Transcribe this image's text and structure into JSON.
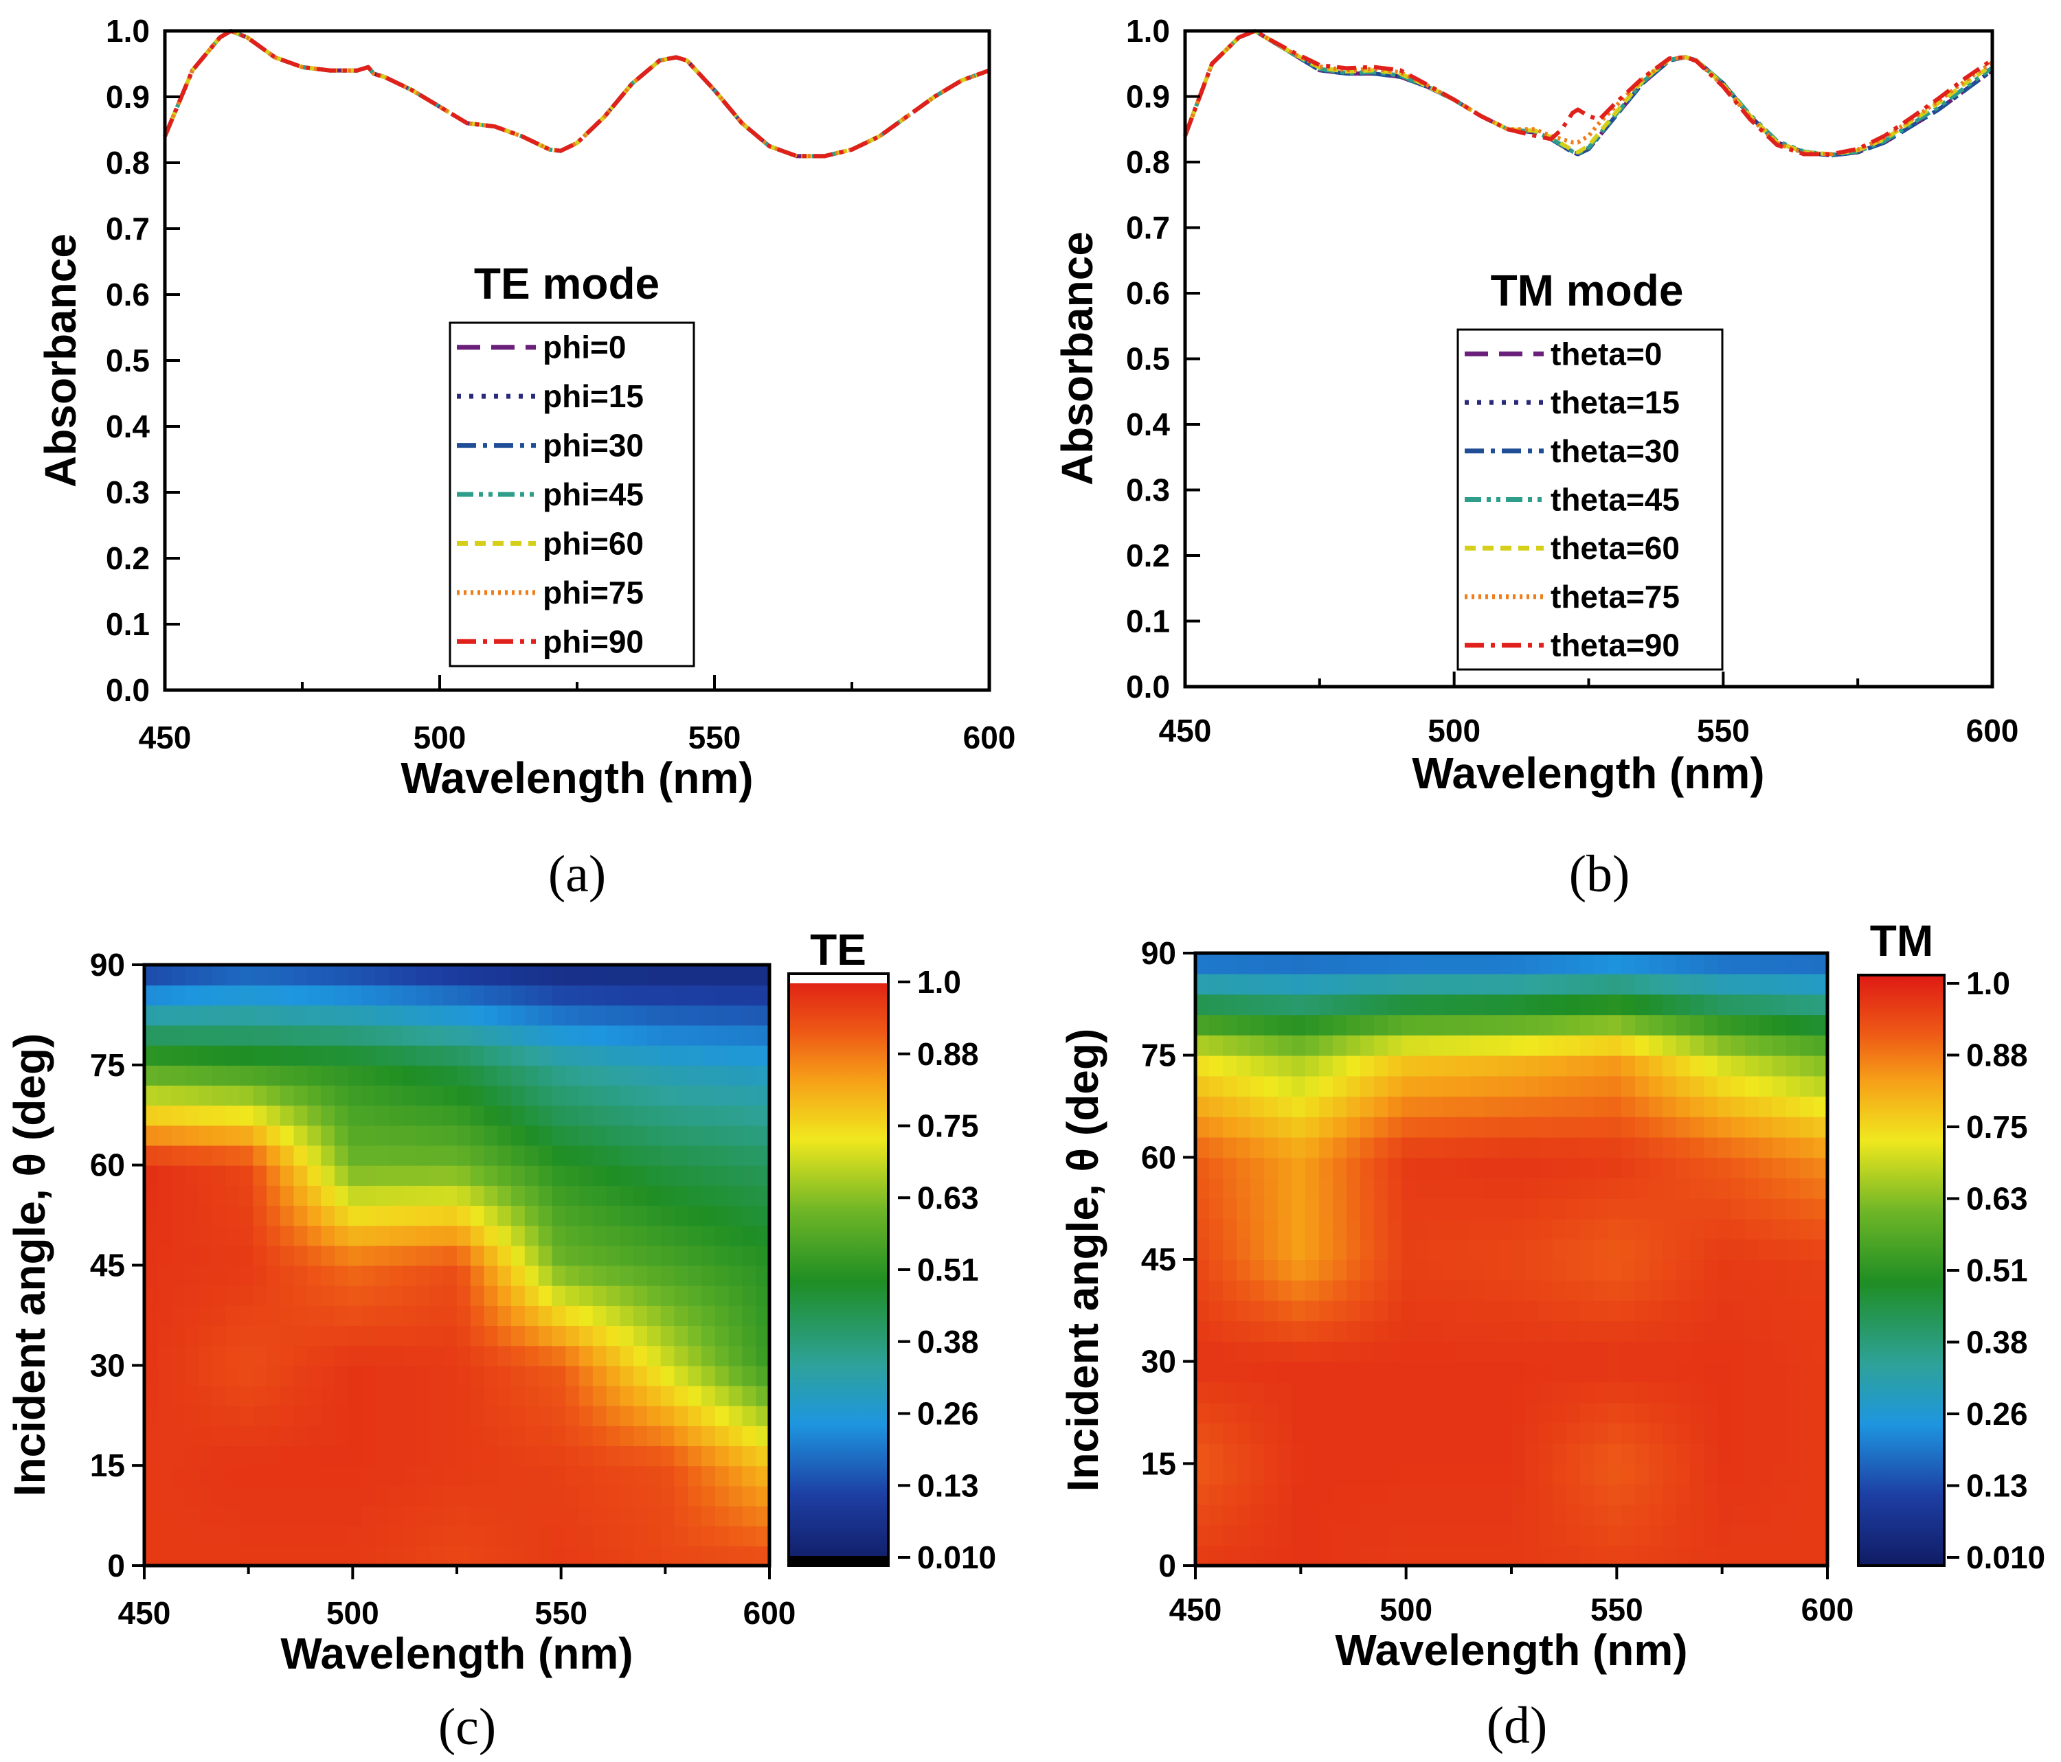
{
  "chart_data": [
    {
      "id": "a",
      "type": "line",
      "panel_label": "(a)",
      "title": "TE mode",
      "xlabel": "Wavelength (nm)",
      "ylabel": "Absorbance",
      "xlim": [
        450,
        600
      ],
      "ylim": [
        0.0,
        1.0
      ],
      "xticks": [
        "450",
        "500",
        "550",
        "600"
      ],
      "yticks": [
        "0.0",
        "0.1",
        "0.2",
        "0.3",
        "0.4",
        "0.5",
        "0.6",
        "0.7",
        "0.8",
        "0.9",
        "1.0"
      ],
      "legend_position": "center",
      "x": [
        450,
        455,
        460,
        462,
        465,
        470,
        475,
        480,
        485,
        487,
        488,
        490,
        495,
        500,
        505,
        510,
        515,
        520,
        522,
        525,
        530,
        535,
        540,
        543,
        545,
        550,
        555,
        560,
        565,
        570,
        575,
        580,
        585,
        590,
        595,
        600
      ],
      "series": [
        {
          "name": "phi=0",
          "color": "#6a1f7a",
          "dash": "dash",
          "values": [
            0.84,
            0.94,
            0.99,
            1.0,
            0.99,
            0.96,
            0.945,
            0.94,
            0.94,
            0.945,
            0.935,
            0.93,
            0.91,
            0.885,
            0.86,
            0.855,
            0.84,
            0.82,
            0.818,
            0.83,
            0.87,
            0.92,
            0.955,
            0.96,
            0.955,
            0.91,
            0.86,
            0.825,
            0.81,
            0.81,
            0.82,
            0.84,
            0.87,
            0.9,
            0.925,
            0.94
          ]
        },
        {
          "name": "phi=15",
          "color": "#2a2a7a",
          "dash": "dot",
          "values": [
            0.84,
            0.94,
            0.99,
            1.0,
            0.99,
            0.96,
            0.945,
            0.94,
            0.94,
            0.945,
            0.935,
            0.93,
            0.91,
            0.885,
            0.86,
            0.855,
            0.84,
            0.82,
            0.818,
            0.83,
            0.87,
            0.92,
            0.955,
            0.96,
            0.955,
            0.91,
            0.86,
            0.825,
            0.81,
            0.81,
            0.82,
            0.84,
            0.87,
            0.9,
            0.925,
            0.94
          ]
        },
        {
          "name": "phi=30",
          "color": "#1f4e96",
          "dash": "dashdot",
          "values": [
            0.84,
            0.94,
            0.99,
            1.0,
            0.99,
            0.96,
            0.945,
            0.94,
            0.94,
            0.945,
            0.935,
            0.93,
            0.91,
            0.885,
            0.86,
            0.855,
            0.84,
            0.82,
            0.818,
            0.83,
            0.87,
            0.92,
            0.955,
            0.96,
            0.955,
            0.91,
            0.86,
            0.825,
            0.81,
            0.81,
            0.82,
            0.84,
            0.87,
            0.9,
            0.925,
            0.94
          ]
        },
        {
          "name": "phi=45",
          "color": "#2e9e8a",
          "dash": "dashdotdot",
          "values": [
            0.84,
            0.94,
            0.99,
            1.0,
            0.99,
            0.96,
            0.945,
            0.94,
            0.94,
            0.945,
            0.935,
            0.93,
            0.91,
            0.885,
            0.86,
            0.855,
            0.84,
            0.82,
            0.818,
            0.83,
            0.87,
            0.92,
            0.955,
            0.96,
            0.955,
            0.91,
            0.86,
            0.825,
            0.81,
            0.81,
            0.82,
            0.84,
            0.87,
            0.9,
            0.925,
            0.94
          ]
        },
        {
          "name": "phi=60",
          "color": "#d6cf1a",
          "dash": "shortdash",
          "values": [
            0.84,
            0.94,
            0.99,
            1.0,
            0.99,
            0.96,
            0.945,
            0.94,
            0.94,
            0.945,
            0.935,
            0.93,
            0.91,
            0.885,
            0.86,
            0.855,
            0.84,
            0.82,
            0.818,
            0.83,
            0.87,
            0.92,
            0.955,
            0.96,
            0.955,
            0.91,
            0.86,
            0.825,
            0.81,
            0.81,
            0.82,
            0.84,
            0.87,
            0.9,
            0.925,
            0.94
          ]
        },
        {
          "name": "phi=75",
          "color": "#ef7d1a",
          "dash": "finedot",
          "values": [
            0.84,
            0.94,
            0.99,
            1.0,
            0.99,
            0.96,
            0.945,
            0.94,
            0.94,
            0.945,
            0.935,
            0.93,
            0.91,
            0.885,
            0.86,
            0.855,
            0.84,
            0.82,
            0.818,
            0.83,
            0.87,
            0.92,
            0.955,
            0.96,
            0.955,
            0.91,
            0.86,
            0.825,
            0.81,
            0.81,
            0.82,
            0.84,
            0.87,
            0.9,
            0.925,
            0.94
          ]
        },
        {
          "name": "phi=90",
          "color": "#e0201b",
          "dash": "dashdot",
          "values": [
            0.84,
            0.94,
            0.99,
            1.0,
            0.99,
            0.96,
            0.945,
            0.94,
            0.94,
            0.945,
            0.935,
            0.93,
            0.91,
            0.885,
            0.86,
            0.855,
            0.84,
            0.82,
            0.818,
            0.83,
            0.87,
            0.92,
            0.955,
            0.96,
            0.955,
            0.91,
            0.86,
            0.825,
            0.81,
            0.81,
            0.82,
            0.84,
            0.87,
            0.9,
            0.925,
            0.94
          ]
        }
      ]
    },
    {
      "id": "b",
      "type": "line",
      "panel_label": "(b)",
      "title": "TM mode",
      "xlabel": "Wavelength (nm)",
      "ylabel": "Absorbance",
      "xlim": [
        450,
        600
      ],
      "ylim": [
        0.0,
        1.0
      ],
      "xticks": [
        "450",
        "500",
        "550",
        "600"
      ],
      "yticks": [
        "0.0",
        "0.1",
        "0.2",
        "0.3",
        "0.4",
        "0.5",
        "0.6",
        "0.7",
        "0.8",
        "0.9",
        "1.0"
      ],
      "legend_position": "center",
      "x": [
        450,
        455,
        460,
        463,
        465,
        470,
        475,
        480,
        485,
        490,
        495,
        500,
        505,
        510,
        515,
        518,
        520,
        522,
        523,
        525,
        527,
        530,
        535,
        540,
        543,
        545,
        550,
        555,
        560,
        565,
        570,
        575,
        580,
        585,
        590,
        595,
        600
      ],
      "series": [
        {
          "name": "theta=0",
          "color": "#6a1f7a",
          "dash": "dash",
          "values": [
            0.84,
            0.95,
            0.99,
            1.0,
            0.99,
            0.965,
            0.94,
            0.935,
            0.935,
            0.93,
            0.915,
            0.895,
            0.87,
            0.85,
            0.845,
            0.835,
            0.825,
            0.815,
            0.812,
            0.82,
            0.84,
            0.87,
            0.92,
            0.955,
            0.96,
            0.955,
            0.92,
            0.87,
            0.83,
            0.815,
            0.81,
            0.815,
            0.83,
            0.855,
            0.88,
            0.91,
            0.94
          ]
        },
        {
          "name": "theta=15",
          "color": "#2a2a7a",
          "dash": "dot",
          "values": [
            0.84,
            0.95,
            0.99,
            1.0,
            0.99,
            0.965,
            0.94,
            0.935,
            0.935,
            0.93,
            0.915,
            0.895,
            0.87,
            0.85,
            0.845,
            0.835,
            0.825,
            0.815,
            0.812,
            0.82,
            0.84,
            0.87,
            0.92,
            0.955,
            0.96,
            0.955,
            0.92,
            0.87,
            0.83,
            0.815,
            0.81,
            0.815,
            0.83,
            0.855,
            0.88,
            0.91,
            0.94
          ]
        },
        {
          "name": "theta=30",
          "color": "#1f4e96",
          "dash": "dashdot",
          "values": [
            0.84,
            0.95,
            0.99,
            1.0,
            0.99,
            0.965,
            0.94,
            0.935,
            0.935,
            0.93,
            0.915,
            0.895,
            0.87,
            0.85,
            0.845,
            0.835,
            0.825,
            0.815,
            0.812,
            0.82,
            0.84,
            0.87,
            0.92,
            0.955,
            0.96,
            0.955,
            0.92,
            0.87,
            0.83,
            0.815,
            0.81,
            0.815,
            0.83,
            0.855,
            0.88,
            0.91,
            0.94
          ]
        },
        {
          "name": "theta=45",
          "color": "#2e9e8a",
          "dash": "dashdotdot",
          "values": [
            0.84,
            0.95,
            0.99,
            1.0,
            0.99,
            0.965,
            0.942,
            0.936,
            0.937,
            0.932,
            0.915,
            0.895,
            0.87,
            0.85,
            0.846,
            0.836,
            0.826,
            0.816,
            0.813,
            0.822,
            0.842,
            0.872,
            0.922,
            0.956,
            0.96,
            0.955,
            0.92,
            0.872,
            0.832,
            0.816,
            0.811,
            0.816,
            0.832,
            0.858,
            0.884,
            0.914,
            0.944
          ]
        },
        {
          "name": "theta=60",
          "color": "#d6cf1a",
          "dash": "shortdash",
          "values": [
            0.84,
            0.95,
            0.99,
            1.0,
            0.99,
            0.966,
            0.944,
            0.938,
            0.94,
            0.935,
            0.916,
            0.895,
            0.87,
            0.85,
            0.848,
            0.838,
            0.828,
            0.818,
            0.815,
            0.825,
            0.845,
            0.875,
            0.924,
            0.957,
            0.96,
            0.955,
            0.918,
            0.87,
            0.83,
            0.815,
            0.812,
            0.818,
            0.835,
            0.862,
            0.89,
            0.92,
            0.948
          ]
        },
        {
          "name": "theta=75",
          "color": "#ef7d1a",
          "dash": "finedot",
          "values": [
            0.84,
            0.95,
            0.99,
            1.0,
            0.99,
            0.966,
            0.946,
            0.94,
            0.942,
            0.937,
            0.917,
            0.895,
            0.87,
            0.85,
            0.85,
            0.84,
            0.835,
            0.83,
            0.83,
            0.84,
            0.86,
            0.885,
            0.926,
            0.957,
            0.96,
            0.955,
            0.916,
            0.868,
            0.828,
            0.814,
            0.812,
            0.819,
            0.837,
            0.865,
            0.893,
            0.924,
            0.952
          ]
        },
        {
          "name": "theta=90",
          "color": "#e0201b",
          "dash": "dashdot",
          "values": [
            0.84,
            0.95,
            0.99,
            1.0,
            0.99,
            0.968,
            0.948,
            0.943,
            0.945,
            0.94,
            0.918,
            0.895,
            0.87,
            0.85,
            0.84,
            0.835,
            0.85,
            0.875,
            0.88,
            0.87,
            0.865,
            0.89,
            0.928,
            0.958,
            0.96,
            0.954,
            0.915,
            0.865,
            0.826,
            0.812,
            0.812,
            0.82,
            0.84,
            0.868,
            0.897,
            0.928,
            0.956
          ]
        }
      ]
    },
    {
      "id": "c",
      "type": "heatmap",
      "panel_label": "(c)",
      "colorbar_title": "TE",
      "xlabel": "Wavelength (nm)",
      "ylabel": "Incident angle, θ (deg)",
      "xlim": [
        450,
        600
      ],
      "ylim": [
        0,
        90
      ],
      "xticks": [
        "450",
        "500",
        "550",
        "600"
      ],
      "yticks": [
        "0",
        "15",
        "30",
        "45",
        "60",
        "75",
        "90"
      ],
      "colorbar_ticks": [
        "0.010",
        "0.13",
        "0.26",
        "0.38",
        "0.51",
        "0.63",
        "0.75",
        "0.88",
        "1.0"
      ],
      "colorbar_range": [
        0.01,
        1.0
      ],
      "x": [
        450,
        475,
        500,
        525,
        550,
        575,
        600
      ],
      "y": [
        0,
        15,
        30,
        45,
        60,
        75,
        90
      ],
      "z": [
        [
          0.95,
          0.95,
          0.95,
          0.93,
          0.95,
          0.93,
          0.93
        ],
        [
          0.95,
          0.96,
          0.96,
          0.95,
          0.94,
          0.92,
          0.78
        ],
        [
          0.96,
          0.92,
          0.96,
          0.95,
          0.9,
          0.7,
          0.52
        ],
        [
          0.96,
          0.95,
          0.88,
          0.92,
          0.6,
          0.55,
          0.5
        ],
        [
          0.97,
          0.93,
          0.6,
          0.6,
          0.5,
          0.45,
          0.42
        ],
        [
          0.55,
          0.52,
          0.5,
          0.45,
          0.35,
          0.3,
          0.28
        ],
        [
          0.1,
          0.15,
          0.12,
          0.08,
          0.05,
          0.05,
          0.05
        ]
      ]
    },
    {
      "id": "d",
      "type": "heatmap",
      "panel_label": "(d)",
      "colorbar_title": "TM",
      "xlabel": "Wavelength (nm)",
      "ylabel": "Incident angle, θ (deg)",
      "xlim": [
        450,
        600
      ],
      "ylim": [
        0,
        90
      ],
      "xticks": [
        "450",
        "500",
        "550",
        "600"
      ],
      "yticks": [
        "0",
        "15",
        "30",
        "45",
        "60",
        "75",
        "90"
      ],
      "colorbar_ticks": [
        "0.010",
        "0.13",
        "0.26",
        "0.38",
        "0.51",
        "0.63",
        "0.75",
        "0.88",
        "1.0"
      ],
      "colorbar_range": [
        0.01,
        1.0
      ],
      "x": [
        450,
        475,
        500,
        525,
        550,
        575,
        600
      ],
      "y": [
        0,
        15,
        30,
        45,
        60,
        75,
        90
      ],
      "z": [
        [
          0.95,
          0.96,
          0.95,
          0.95,
          0.94,
          0.95,
          0.95
        ],
        [
          0.9,
          0.96,
          0.96,
          0.96,
          0.9,
          0.96,
          0.95
        ],
        [
          0.96,
          0.96,
          0.96,
          0.96,
          0.96,
          0.96,
          0.95
        ],
        [
          0.93,
          0.82,
          0.94,
          0.93,
          0.9,
          0.95,
          0.94
        ],
        [
          0.9,
          0.82,
          0.95,
          0.96,
          0.95,
          0.9,
          0.84
        ],
        [
          0.72,
          0.65,
          0.76,
          0.78,
          0.82,
          0.68,
          0.6
        ],
        [
          0.15,
          0.15,
          0.15,
          0.15,
          0.18,
          0.15,
          0.15
        ]
      ]
    }
  ]
}
